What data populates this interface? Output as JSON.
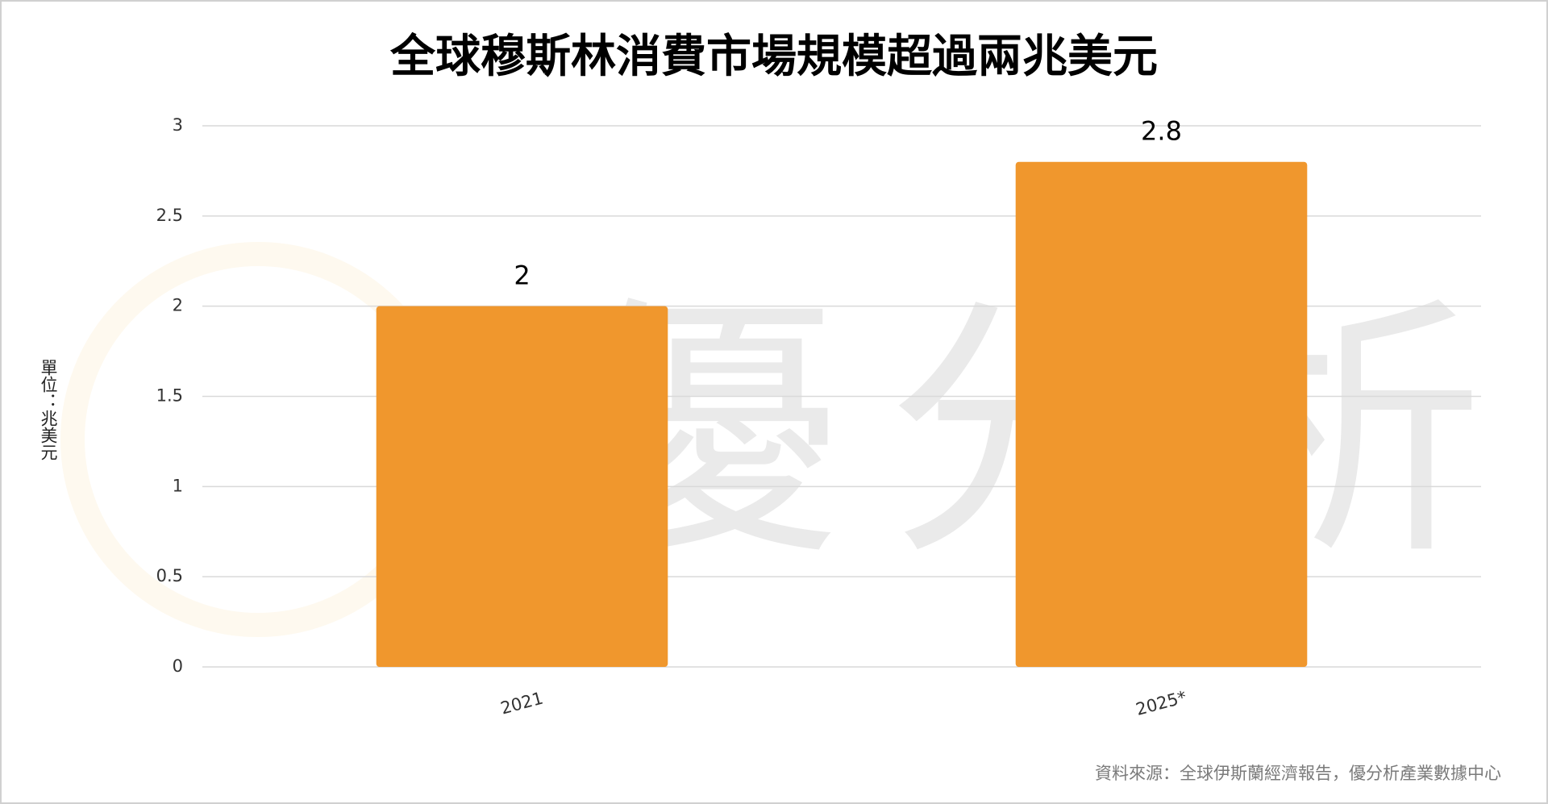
{
  "chart_data": {
    "type": "bar",
    "title": "全球穆斯林消費市場規模超過兩兆美元",
    "y_label": "單位：兆美元",
    "categories": [
      "2021",
      "2025*"
    ],
    "values": [
      2,
      2.8
    ],
    "color": "#f0972d",
    "ylim": [
      0,
      3
    ],
    "yticks": [
      0,
      0.5,
      1,
      1.5,
      2,
      2.5,
      3
    ],
    "grid": true,
    "source": "資料來源：全球伊斯蘭經濟報告，優分析產業數據中心",
    "watermark": "優分析"
  }
}
